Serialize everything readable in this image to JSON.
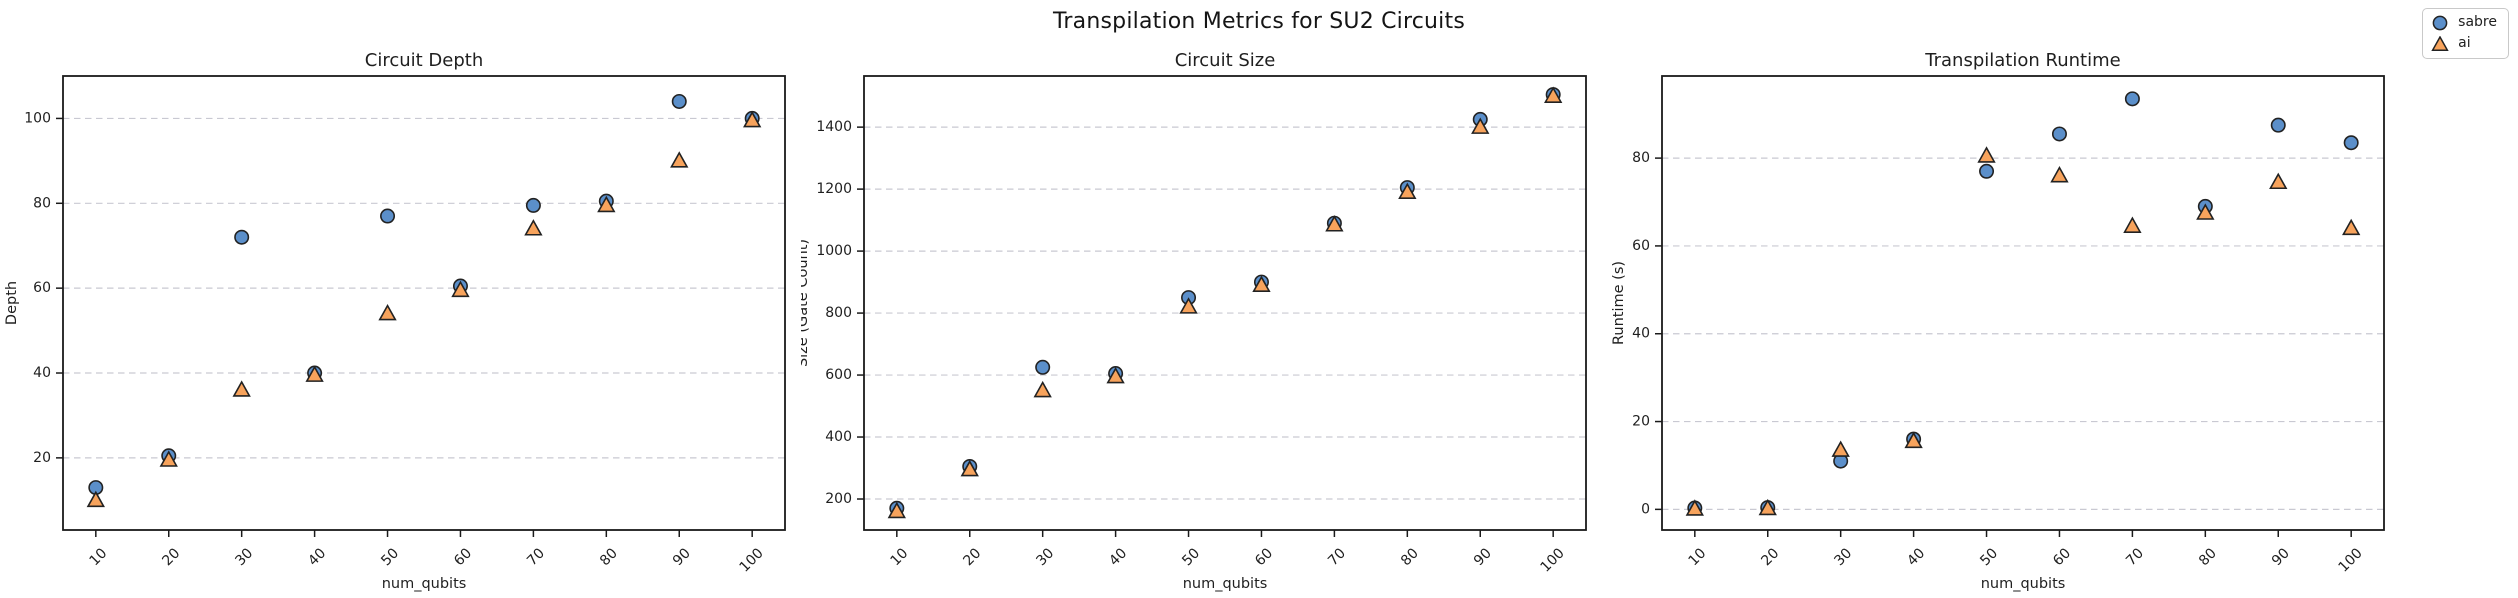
{
  "figure": {
    "title": "Transpilation Metrics for SU2 Circuits"
  },
  "legend": {
    "items": [
      {
        "label": "sabre",
        "marker": "circle-icon",
        "color": "#5b8fca"
      },
      {
        "label": "ai",
        "marker": "triangle-icon",
        "color": "#f7a35c"
      }
    ]
  },
  "colors": {
    "sabre": "#5b8fca",
    "ai": "#f7a35c",
    "marker_edge": "#222222",
    "grid": "#c9c9d2",
    "axis": "#1a1a1a",
    "text": "#1f1f1f"
  },
  "chart_data": [
    {
      "type": "scatter",
      "title": "Circuit Depth",
      "xlabel": "num_qubits",
      "ylabel": "Depth",
      "x": [
        10,
        20,
        30,
        40,
        50,
        60,
        70,
        80,
        90,
        100
      ],
      "series": [
        {
          "name": "sabre",
          "marker": "circle",
          "values": [
            13,
            20.5,
            72,
            40,
            77,
            60.5,
            79.5,
            80.5,
            104,
            100
          ]
        },
        {
          "name": "ai",
          "marker": "triangle",
          "values": [
            10,
            19.5,
            36,
            39.5,
            54,
            59.5,
            74,
            79.5,
            90,
            99.5
          ]
        }
      ],
      "xlim": [
        5.5,
        104.5
      ],
      "ylim": [
        3,
        110
      ],
      "yticks": [
        20,
        40,
        60,
        80,
        100
      ],
      "grid": "horizontal-dashed",
      "legend_position": "figure-top-right"
    },
    {
      "type": "scatter",
      "title": "Circuit Size",
      "xlabel": "num_qubits",
      "ylabel": "Size (Gate Count)",
      "x": [
        10,
        20,
        30,
        40,
        50,
        60,
        70,
        80,
        90,
        100
      ],
      "series": [
        {
          "name": "sabre",
          "marker": "circle",
          "values": [
            170,
            305,
            625,
            605,
            850,
            900,
            1090,
            1205,
            1425,
            1505
          ]
        },
        {
          "name": "ai",
          "marker": "triangle",
          "values": [
            160,
            295,
            550,
            595,
            820,
            890,
            1085,
            1190,
            1400,
            1500
          ]
        }
      ],
      "xlim": [
        5.5,
        104.5
      ],
      "ylim": [
        100,
        1565
      ],
      "yticks": [
        200,
        400,
        600,
        800,
        1000,
        1200,
        1400
      ],
      "grid": "horizontal-dashed",
      "legend_position": "figure-top-right"
    },
    {
      "type": "scatter",
      "title": "Transpilation Runtime",
      "xlabel": "num_qubits",
      "ylabel": "Runtime (s)",
      "x": [
        10,
        20,
        30,
        40,
        50,
        60,
        70,
        80,
        90,
        100
      ],
      "series": [
        {
          "name": "sabre",
          "marker": "circle",
          "values": [
            0.3,
            0.4,
            11,
            16,
            77,
            85.5,
            93.5,
            69,
            87.5,
            83.5
          ]
        },
        {
          "name": "ai",
          "marker": "triangle",
          "values": [
            0.1,
            0.2,
            13.5,
            15.5,
            80.5,
            76,
            64.5,
            67.5,
            74.5,
            64
          ]
        }
      ],
      "xlim": [
        5.5,
        104.5
      ],
      "ylim": [
        -4.7,
        98.7
      ],
      "yticks": [
        0,
        20,
        40,
        60,
        80
      ],
      "grid": "horizontal-dashed",
      "legend_position": "figure-top-right"
    }
  ]
}
